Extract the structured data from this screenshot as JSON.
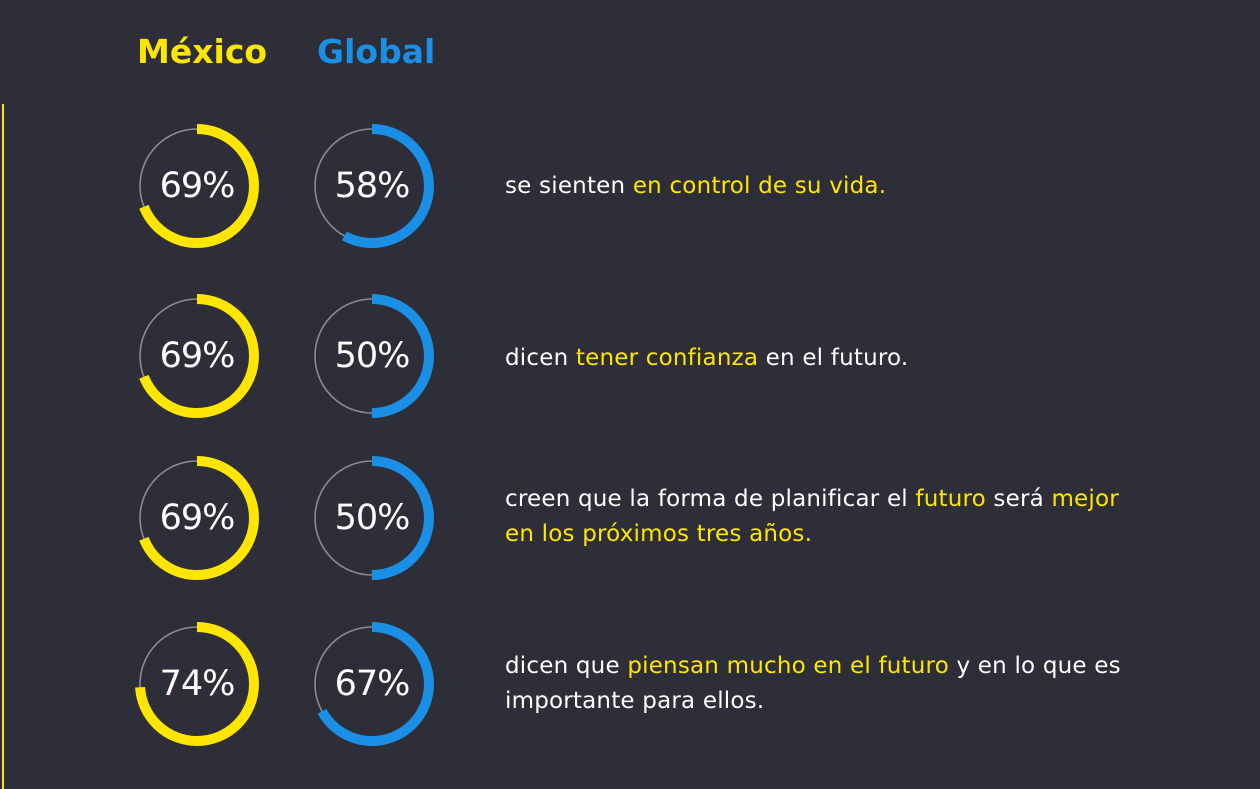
{
  "colors": {
    "background": "#2e2e38",
    "mexico": "#ffe600",
    "global": "#1a8fe6",
    "track": "#8a8a94",
    "text": "#ffffff"
  },
  "legend": {
    "mexico": "México",
    "global": "Global"
  },
  "chart_data": {
    "type": "donut",
    "series": [
      {
        "name": "México",
        "values": [
          69,
          69,
          69,
          74
        ]
      },
      {
        "name": "Global",
        "values": [
          58,
          50,
          50,
          67
        ]
      }
    ],
    "rows": [
      {
        "mexico_label": "69%",
        "global_label": "58%",
        "text": [
          {
            "t": "se sienten "
          },
          {
            "t": "en control de su vida.",
            "hl": true
          }
        ]
      },
      {
        "mexico_label": "69%",
        "global_label": "50%",
        "text": [
          {
            "t": "dicen "
          },
          {
            "t": "tener confianza",
            "hl": true
          },
          {
            "t": " en el futuro."
          }
        ]
      },
      {
        "mexico_label": "69%",
        "global_label": "50%",
        "text": [
          {
            "t": "creen que la forma de planificar el "
          },
          {
            "t": "futuro",
            "hl": true
          },
          {
            "t": " será "
          },
          {
            "t": "mejor en los próximos tres años.",
            "hl": true
          }
        ]
      },
      {
        "mexico_label": "74%",
        "global_label": "67%",
        "text": [
          {
            "t": "dicen que "
          },
          {
            "t": "piensan mucho en el futuro",
            "hl": true
          },
          {
            "t": " y en lo que es importante para ellos."
          }
        ]
      }
    ]
  }
}
